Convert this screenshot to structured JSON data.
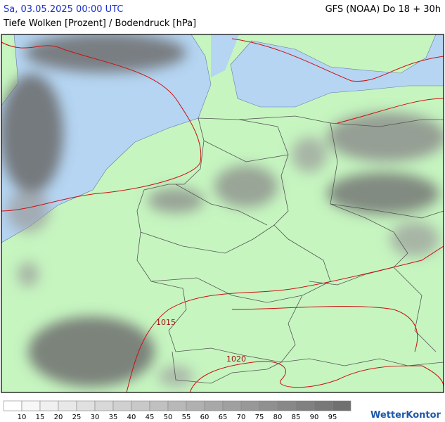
{
  "header": {
    "datetime": "Sa, 03.05.2025 00:00 UTC",
    "model": "GFS (NOAA) Do 18 + 30h",
    "subtitle": "Tiefe Wolken [Prozent] / Bodendruck [hPa]"
  },
  "map": {
    "isobar_labels": [
      "1015",
      "1020"
    ]
  },
  "legend": {
    "colors": [
      "#ffffff",
      "#f7f7f7",
      "#f0f0f0",
      "#e8e8e8",
      "#e0e0e0",
      "#d8d8d8",
      "#d0d0d0",
      "#c8c8c8",
      "#c0c0c0",
      "#b8b8b8",
      "#b0b0b0",
      "#a8a8a8",
      "#a0a0a0",
      "#989898",
      "#909090",
      "#888888",
      "#808080",
      "#787878",
      "#707070"
    ],
    "labels": [
      10,
      15,
      20,
      25,
      30,
      35,
      40,
      45,
      50,
      55,
      60,
      65,
      70,
      75,
      80,
      85,
      90,
      95
    ]
  },
  "logo": "WetterKontor"
}
